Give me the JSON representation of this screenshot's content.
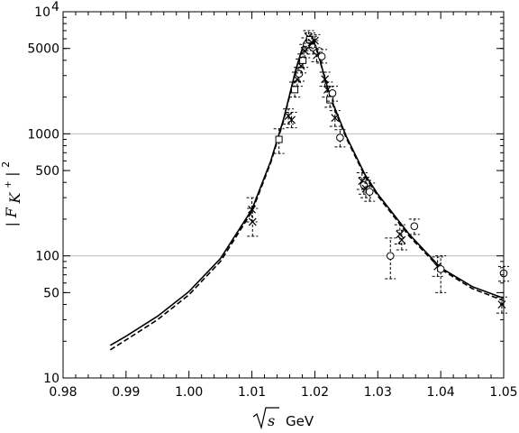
{
  "chart_data": {
    "type": "scatter",
    "title": "",
    "xlabel": "√s GeV",
    "xlabel_sym": "s",
    "xlabel_unit": "GeV",
    "ylabel": "|F_K+|^2",
    "ylabel_parts": {
      "bar_left": "|",
      "main": "F",
      "sub": "K",
      "sup": "+",
      "bar_right": "|",
      "power": "2"
    },
    "xlim": [
      0.98,
      1.05
    ],
    "ylim": [
      10,
      10000
    ],
    "yscale": "log",
    "grid": {
      "y_major": true,
      "x": false
    },
    "xticks": [
      "0.98",
      "0.99",
      "1.00",
      "1.01",
      "1.02",
      "1.03",
      "1.04",
      "1.05"
    ],
    "yticks": [
      {
        "value": 10,
        "label": "10"
      },
      {
        "value": 50,
        "label": "50"
      },
      {
        "value": 100,
        "label": "100"
      },
      {
        "value": 500,
        "label": "500"
      },
      {
        "value": 1000,
        "label": "1000"
      },
      {
        "value": 5000,
        "label": "5000"
      },
      {
        "value": 10000,
        "label": "10",
        "sup": "4"
      }
    ],
    "series": [
      {
        "style": "solid",
        "x": [
          0.9875,
          0.99,
          0.995,
          1.0,
          1.005,
          1.01,
          1.013,
          1.015,
          1.016,
          1.017,
          1.018,
          1.0185,
          1.019,
          1.0195,
          1.02,
          1.0205,
          1.021,
          1.022,
          1.023,
          1.025,
          1.028,
          1.03,
          1.035,
          1.04,
          1.045,
          1.05
        ],
        "y": [
          18.5,
          22,
          32,
          51,
          95,
          240,
          600,
          1300,
          2100,
          3400,
          5000,
          5700,
          6200,
          6100,
          5400,
          4600,
          3700,
          2400,
          1700,
          950,
          460,
          320,
          150,
          80,
          56,
          45
        ]
      },
      {
        "style": "dashed",
        "x": [
          0.9875,
          0.99,
          0.995,
          1.0,
          1.005,
          1.01,
          1.013,
          1.015,
          1.016,
          1.017,
          1.018,
          1.0185,
          1.019,
          1.0195,
          1.02,
          1.0205,
          1.021,
          1.022,
          1.023,
          1.025,
          1.028,
          1.03,
          1.035,
          1.04,
          1.045,
          1.05
        ],
        "y": [
          17,
          20.5,
          30,
          48,
          90,
          230,
          580,
          1270,
          2050,
          3350,
          4950,
          5650,
          6150,
          6050,
          5350,
          4550,
          3650,
          2350,
          1650,
          920,
          445,
          310,
          145,
          78,
          54,
          43
        ]
      }
    ],
    "points": [
      {
        "marker": "x",
        "x": 1.01,
        "y": 240,
        "yerr_lo": 190,
        "yerr_hi": 300
      },
      {
        "marker": "x",
        "x": 1.0101,
        "y": 190,
        "yerr_lo": 145,
        "yerr_hi": 245
      },
      {
        "marker": "square",
        "x": 1.0143,
        "y": 900,
        "yerr_lo": 690,
        "yerr_hi": 1100
      },
      {
        "marker": "x",
        "x": 1.0158,
        "y": 1400,
        "yerr_lo": 1200,
        "yerr_hi": 1600
      },
      {
        "marker": "x",
        "x": 1.0163,
        "y": 1300,
        "yerr_lo": 1120,
        "yerr_hi": 1500
      },
      {
        "marker": "square",
        "x": 1.0168,
        "y": 2300,
        "yerr_lo": 2000,
        "yerr_hi": 2650
      },
      {
        "marker": "x",
        "x": 1.0172,
        "y": 2800,
        "yerr_lo": 2450,
        "yerr_hi": 3200
      },
      {
        "marker": "circle",
        "x": 1.0175,
        "y": 3100,
        "yerr_lo": 2700,
        "yerr_hi": 3500
      },
      {
        "marker": "x",
        "x": 1.0178,
        "y": 3600,
        "yerr_lo": 3150,
        "yerr_hi": 4100
      },
      {
        "marker": "square",
        "x": 1.0181,
        "y": 4000,
        "yerr_lo": 3500,
        "yerr_hi": 4500
      },
      {
        "marker": "x",
        "x": 1.0184,
        "y": 4800,
        "yerr_lo": 4200,
        "yerr_hi": 5400
      },
      {
        "marker": "circle",
        "x": 1.0187,
        "y": 5400,
        "yerr_lo": 4800,
        "yerr_hi": 6100
      },
      {
        "marker": "x",
        "x": 1.019,
        "y": 6200,
        "yerr_lo": 5500,
        "yerr_hi": 7000
      },
      {
        "marker": "square",
        "x": 1.0192,
        "y": 5900,
        "yerr_lo": 5200,
        "yerr_hi": 6700
      },
      {
        "marker": "x",
        "x": 1.0195,
        "y": 5600,
        "yerr_lo": 5000,
        "yerr_hi": 6300
      },
      {
        "marker": "circle",
        "x": 1.0197,
        "y": 5100,
        "yerr_lo": 4500,
        "yerr_hi": 5800
      },
      {
        "marker": "x",
        "x": 1.02,
        "y": 5800,
        "yerr_lo": 5100,
        "yerr_hi": 6500
      },
      {
        "marker": "x",
        "x": 1.0203,
        "y": 4400,
        "yerr_lo": 3900,
        "yerr_hi": 5000
      },
      {
        "marker": "circle",
        "x": 1.0211,
        "y": 4300,
        "yerr_lo": 3800,
        "yerr_hi": 4900
      },
      {
        "marker": "x",
        "x": 1.0216,
        "y": 2800,
        "yerr_lo": 2450,
        "yerr_hi": 3200
      },
      {
        "marker": "x",
        "x": 1.022,
        "y": 2300,
        "yerr_lo": 2000,
        "yerr_hi": 2650
      },
      {
        "marker": "square",
        "x": 1.0224,
        "y": 1900,
        "yerr_lo": 1650,
        "yerr_hi": 2200
      },
      {
        "marker": "circle",
        "x": 1.0228,
        "y": 2150,
        "yerr_lo": 1850,
        "yerr_hi": 2450
      },
      {
        "marker": "x",
        "x": 1.0232,
        "y": 1350,
        "yerr_lo": 1150,
        "yerr_hi": 1550
      },
      {
        "marker": "circle",
        "x": 1.024,
        "y": 930,
        "yerr_lo": 780,
        "yerr_hi": 1080
      },
      {
        "marker": "x",
        "x": 1.0275,
        "y": 410,
        "yerr_lo": 350,
        "yerr_hi": 480
      },
      {
        "marker": "circle",
        "x": 1.0278,
        "y": 380,
        "yerr_lo": 320,
        "yerr_hi": 440
      },
      {
        "marker": "x",
        "x": 1.0281,
        "y": 355,
        "yerr_lo": 300,
        "yerr_hi": 415
      },
      {
        "marker": "circle",
        "x": 1.0287,
        "y": 335,
        "yerr_lo": 280,
        "yerr_hi": 395
      },
      {
        "marker": "circle",
        "x": 1.032,
        "y": 100,
        "yerr_lo": 65,
        "yerr_hi": 140
      },
      {
        "marker": "x",
        "x": 1.0335,
        "y": 150,
        "yerr_lo": 125,
        "yerr_hi": 180
      },
      {
        "marker": "x",
        "x": 1.0338,
        "y": 135,
        "yerr_lo": 112,
        "yerr_hi": 162
      },
      {
        "marker": "circle",
        "x": 1.0358,
        "y": 175,
        "yerr_lo": 150,
        "yerr_hi": 200
      },
      {
        "marker": "x",
        "x": 1.0395,
        "y": 82,
        "yerr_lo": 68,
        "yerr_hi": 98
      },
      {
        "marker": "circle",
        "x": 1.04,
        "y": 78,
        "yerr_lo": 50,
        "yerr_hi": 100
      },
      {
        "marker": "x",
        "x": 1.0497,
        "y": 40,
        "yerr_lo": 34,
        "yerr_hi": 46
      },
      {
        "marker": "circle",
        "x": 1.05,
        "y": 72,
        "yerr_lo": 62,
        "yerr_hi": 82
      }
    ]
  }
}
